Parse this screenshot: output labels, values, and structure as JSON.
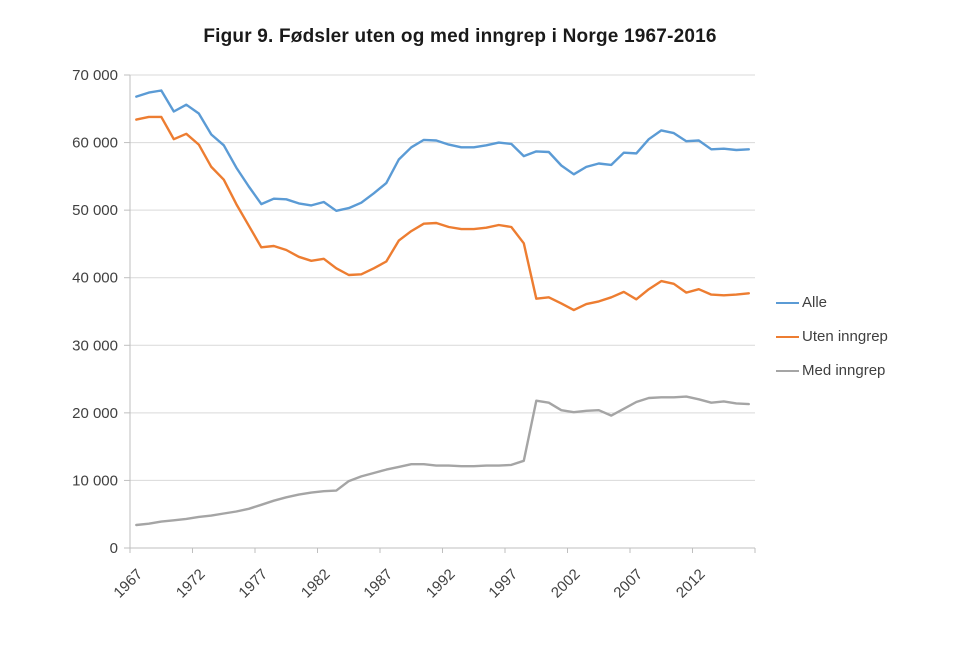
{
  "title": "Figur 9. Fødsler uten og med inngrep i Norge 1967-2016",
  "colors": {
    "background": "#FFFFFF",
    "grid": "#D9D9D9",
    "axis": "#BFBFBF",
    "text": "#404040",
    "title_text": "#1A1A1A"
  },
  "chart_data": {
    "type": "line",
    "title": "Figur 9. Fødsler uten og med inngrep i Norge 1967-2016",
    "xlabel": "",
    "ylabel": "",
    "ylim": [
      0,
      70000
    ],
    "y_tick_step": 10000,
    "y_tick_labels": [
      "0",
      "10 000",
      "20 000",
      "30 000",
      "40 000",
      "50 000",
      "60 000",
      "70 000"
    ],
    "x_tick_labels": [
      "1967",
      "1972",
      "1977",
      "1982",
      "1987",
      "1992",
      "1997",
      "2002",
      "2007",
      "2012"
    ],
    "grid": "horizontal",
    "legend_position": "right",
    "x": [
      1967,
      1968,
      1969,
      1970,
      1971,
      1972,
      1973,
      1974,
      1975,
      1976,
      1977,
      1978,
      1979,
      1980,
      1981,
      1982,
      1983,
      1984,
      1985,
      1986,
      1987,
      1988,
      1989,
      1990,
      1991,
      1992,
      1993,
      1994,
      1995,
      1996,
      1997,
      1998,
      1999,
      2000,
      2001,
      2002,
      2003,
      2004,
      2005,
      2006,
      2007,
      2008,
      2009,
      2010,
      2011,
      2012,
      2013,
      2014,
      2015,
      2016
    ],
    "series": [
      {
        "name": "Alle",
        "color": "#5B9BD5",
        "values": [
          66800,
          67400,
          67700,
          64600,
          65600,
          64300,
          61200,
          59600,
          56300,
          53500,
          50900,
          51700,
          51600,
          51000,
          50700,
          51200,
          49900,
          50300,
          51100,
          52500,
          54000,
          57500,
          59300,
          60400,
          60300,
          59700,
          59300,
          59300,
          59600,
          60000,
          59800,
          58000,
          58700,
          58600,
          56600,
          55300,
          56400,
          56900,
          56700,
          58500,
          58400,
          60500,
          61800,
          61400,
          60200,
          60300,
          59000,
          59100,
          58900,
          59000
        ]
      },
      {
        "name": "Uten inngrep",
        "color": "#ED7D31",
        "values": [
          63400,
          63800,
          63800,
          60500,
          61300,
          59700,
          56400,
          54500,
          50900,
          47700,
          44500,
          44700,
          44100,
          43100,
          42500,
          42800,
          41400,
          40400,
          40500,
          41400,
          42400,
          45500,
          46900,
          48000,
          48100,
          47500,
          47200,
          47200,
          47400,
          47800,
          47500,
          45100,
          36900,
          37100,
          36200,
          35200,
          36100,
          36500,
          37100,
          37900,
          36800,
          38300,
          39500,
          39100,
          37800,
          38300,
          37500,
          37400,
          37500,
          37700
        ]
      },
      {
        "name": "Med inngrep",
        "color": "#A5A5A5",
        "values": [
          3400,
          3600,
          3900,
          4100,
          4300,
          4600,
          4800,
          5100,
          5400,
          5800,
          6400,
          7000,
          7500,
          7900,
          8200,
          8400,
          8500,
          9900,
          10600,
          11100,
          11600,
          12000,
          12400,
          12400,
          12200,
          12200,
          12100,
          12100,
          12200,
          12200,
          12300,
          12900,
          21800,
          21500,
          20400,
          20100,
          20300,
          20400,
          19600,
          20600,
          21600,
          22200,
          22300,
          22300,
          22400,
          22000,
          21500,
          21700,
          21400,
          21300
        ]
      }
    ]
  }
}
